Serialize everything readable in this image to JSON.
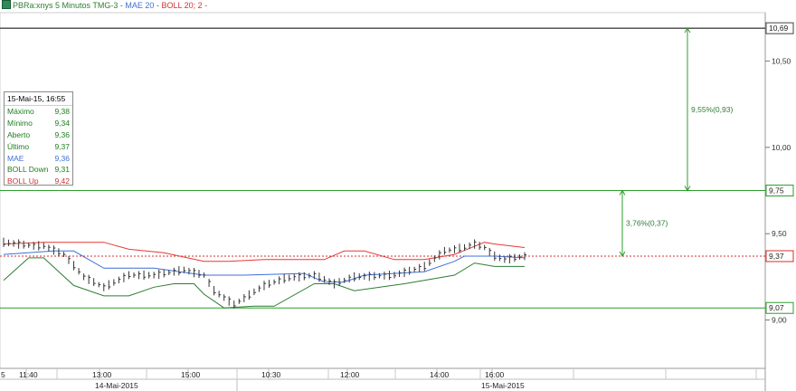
{
  "header": {
    "symbol_text": "PBRa:xnys 5 Minutos TMG-3",
    "mae_text": "MAE 20",
    "boll_text": "BOLL 20; 2 -",
    "sep": "-",
    "colors": {
      "symbol": "#2e7d32",
      "mae": "#3f6fd8",
      "boll": "#d32f2f"
    }
  },
  "infobox": {
    "timestamp": "15-Mai-15, 16:55",
    "rows": [
      {
        "label": "Máximo",
        "value": "9,38",
        "color": "#1b7f1b"
      },
      {
        "label": "Mínimo",
        "value": "9,34",
        "color": "#1b7f1b"
      },
      {
        "label": "Aberto",
        "value": "9,36",
        "color": "#1b7f1b"
      },
      {
        "label": "Último",
        "value": "9,37",
        "color": "#1b7f1b"
      },
      {
        "label": "MAE",
        "value": "9,36",
        "color": "#3f6fd8"
      },
      {
        "label": "BOLL Down",
        "value": "9,31",
        "color": "#1b7f1b"
      },
      {
        "label": "BOLL Up",
        "value": "9,42",
        "color": "#d32f2f"
      }
    ]
  },
  "chart_data": {
    "type": "line",
    "title": "PBRa:xnys 5 Minutos TMG-3",
    "ylim": [
      8.72,
      10.78
    ],
    "y_ticks": [
      "10,50",
      "10,00",
      "9,50",
      "9,00"
    ],
    "x_ticks": [
      "5",
      "11:40",
      "13:00",
      "15:00",
      "10:30",
      "12:00",
      "14:00",
      "16:00"
    ],
    "day_labels": [
      "14-Mai-2015",
      "15-Mai-2015"
    ],
    "horizontal_levels": [
      {
        "value": 10.69,
        "label": "10,69",
        "color": "#444444"
      },
      {
        "value": 9.75,
        "label": "9,75",
        "color": "#2e9e2e"
      },
      {
        "value": 9.37,
        "label": "9,37",
        "color": "#d32f2f"
      },
      {
        "value": 9.07,
        "label": "9,07",
        "color": "#2e9e2e"
      }
    ],
    "annotations": [
      {
        "from": 9.37,
        "to": 9.75,
        "text": "3,76%(0,37)"
      },
      {
        "from": 9.75,
        "to": 10.69,
        "text": "9,55%(0,93)"
      }
    ],
    "series": [
      {
        "name": "BOLL Up",
        "color": "#e53935",
        "x": [
          0,
          8,
          14,
          20,
          25,
          32,
          40,
          45,
          52,
          60,
          64,
          68,
          72,
          78,
          84,
          90,
          96,
          98,
          104
        ],
        "y": [
          9.44,
          9.45,
          9.45,
          9.45,
          9.41,
          9.39,
          9.34,
          9.34,
          9.35,
          9.35,
          9.35,
          9.4,
          9.4,
          9.35,
          9.35,
          9.38,
          9.45,
          9.44,
          9.42
        ]
      },
      {
        "name": "MAE 20",
        "color": "#3f6fd8",
        "x": [
          0,
          10,
          14,
          20,
          30,
          40,
          48,
          60,
          64,
          68,
          72,
          78,
          84,
          90,
          92,
          98,
          104
        ],
        "y": [
          9.38,
          9.4,
          9.4,
          9.3,
          9.3,
          9.26,
          9.26,
          9.27,
          9.22,
          9.22,
          9.26,
          9.27,
          9.28,
          9.34,
          9.37,
          9.37,
          9.36
        ]
      },
      {
        "name": "BOLL Down",
        "color": "#2e7d32",
        "x": [
          0,
          5,
          8,
          14,
          20,
          25,
          30,
          34,
          38,
          40,
          44,
          50,
          54,
          62,
          66,
          70,
          80,
          90,
          94,
          98,
          104
        ],
        "y": [
          9.23,
          9.36,
          9.36,
          9.2,
          9.14,
          9.14,
          9.19,
          9.21,
          9.21,
          9.15,
          9.07,
          9.08,
          9.08,
          9.21,
          9.21,
          9.17,
          9.21,
          9.26,
          9.33,
          9.31,
          9.31
        ]
      },
      {
        "name": "Último",
        "color": "#222222",
        "x": [
          0,
          6,
          8,
          12,
          16,
          20,
          25,
          30,
          36,
          40,
          42,
          46,
          52,
          56,
          62,
          66,
          70,
          78,
          84,
          88,
          92,
          94,
          96,
          98,
          100,
          104
        ],
        "y": [
          9.45,
          9.43,
          9.43,
          9.38,
          9.25,
          9.19,
          9.26,
          9.26,
          9.29,
          9.26,
          9.17,
          9.09,
          9.2,
          9.24,
          9.26,
          9.21,
          9.25,
          9.26,
          9.31,
          9.4,
          9.42,
          9.44,
          9.42,
          9.37,
          9.35,
          9.37
        ]
      }
    ]
  }
}
